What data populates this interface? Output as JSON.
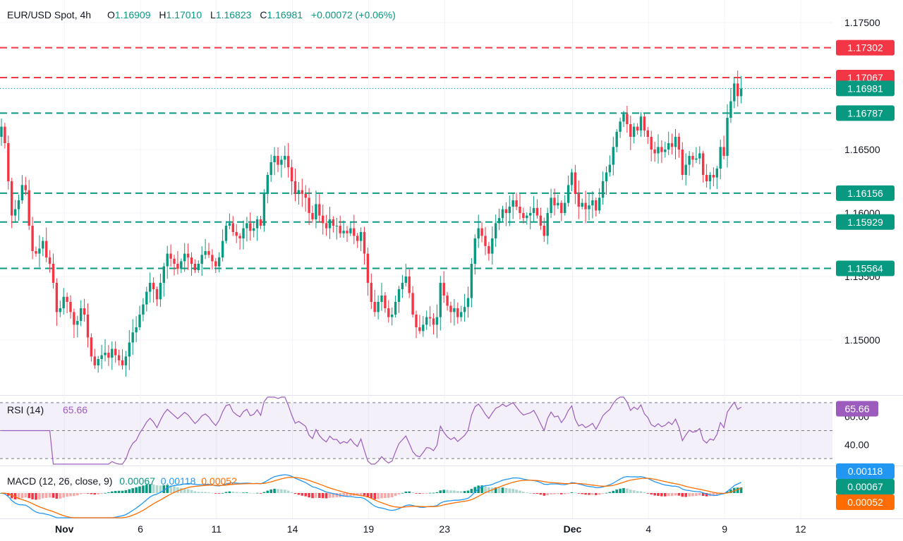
{
  "header": {
    "symbol": "EUR/USD Spot, 4h",
    "open_label": "O",
    "open": "1.16909",
    "high_label": "H",
    "high": "1.17010",
    "low_label": "L",
    "low": "1.16823",
    "close_label": "C",
    "close": "1.16981",
    "change": "+0.00072 (+0.06%)"
  },
  "colors": {
    "up": "#089981",
    "down": "#f23645",
    "rsi": "#9c5cbd",
    "macd": "#2196f3",
    "signal": "#ff6d00",
    "grid": "#f0f3fa"
  },
  "chart_data": [
    {
      "type": "candlestick",
      "title": "EUR/USD Spot, 4h",
      "ylim": [
        1.1465,
        1.1765
      ],
      "y_ticks": [
        "1.17500",
        "1.16500",
        "1.16000",
        "1.15500",
        "1.15000"
      ],
      "x_ticks": [
        {
          "label": "Nov",
          "index": 18
        },
        {
          "label": "6",
          "index": 40
        },
        {
          "label": "11",
          "index": 62
        },
        {
          "label": "14",
          "index": 84
        },
        {
          "label": "19",
          "index": 106
        },
        {
          "label": "23",
          "index": 128
        },
        {
          "label": "Dec",
          "index": 165
        },
        {
          "label": "4",
          "index": 187
        },
        {
          "label": "9",
          "index": 209
        },
        {
          "label": "12",
          "index": 231
        }
      ],
      "levels": [
        {
          "value": 1.17302,
          "label": "1.17302",
          "color": "#f23645"
        },
        {
          "value": 1.17067,
          "label": "1.17067",
          "color": "#f23645"
        },
        {
          "value": 1.16787,
          "label": "1.16787",
          "color": "#089981"
        },
        {
          "value": 1.16156,
          "label": "1.16156",
          "color": "#089981"
        },
        {
          "value": 1.15929,
          "label": "1.15929",
          "color": "#089981"
        },
        {
          "value": 1.15564,
          "label": "1.15564",
          "color": "#089981"
        }
      ],
      "last_price": {
        "value": 1.16981,
        "label": "1.16981"
      },
      "close": [
        1.1668,
        1.1655,
        1.1625,
        1.1598,
        1.1603,
        1.161,
        1.1622,
        1.1618,
        1.159,
        1.157,
        1.1568,
        1.1572,
        1.1578,
        1.1565,
        1.156,
        1.1545,
        1.1522,
        1.1525,
        1.1534,
        1.153,
        1.1522,
        1.1512,
        1.1515,
        1.1525,
        1.152,
        1.1502,
        1.1487,
        1.148,
        1.1485,
        1.1488,
        1.149,
        1.1486,
        1.1493,
        1.1488,
        1.1484,
        1.148,
        1.1487,
        1.1498,
        1.1506,
        1.151,
        1.152,
        1.1528,
        1.1538,
        1.1545,
        1.154,
        1.1532,
        1.1545,
        1.1558,
        1.1568,
        1.1564,
        1.156,
        1.1556,
        1.1562,
        1.1568,
        1.1565,
        1.156,
        1.1555,
        1.156,
        1.1567,
        1.157,
        1.1567,
        1.1562,
        1.1558,
        1.1565,
        1.1578,
        1.159,
        1.1592,
        1.1585,
        1.1582,
        1.158,
        1.1588,
        1.1592,
        1.1586,
        1.1588,
        1.1595,
        1.159,
        1.1615,
        1.163,
        1.164,
        1.1645,
        1.1638,
        1.1642,
        1.1645,
        1.1636,
        1.1625,
        1.1615,
        1.1618,
        1.1615,
        1.1612,
        1.16,
        1.1595,
        1.1607,
        1.1598,
        1.1592,
        1.1588,
        1.1595,
        1.159,
        1.159,
        1.1584,
        1.1586,
        1.1584,
        1.1588,
        1.1582,
        1.1578,
        1.1585,
        1.1568,
        1.1545,
        1.153,
        1.1522,
        1.153,
        1.1535,
        1.1525,
        1.1518,
        1.152,
        1.153,
        1.154,
        1.1545,
        1.155,
        1.1537,
        1.152,
        1.151,
        1.1507,
        1.1512,
        1.1518,
        1.1517,
        1.1512,
        1.1518,
        1.1545,
        1.1535,
        1.1527,
        1.1522,
        1.1525,
        1.1518,
        1.1522,
        1.1526,
        1.1533,
        1.156,
        1.158,
        1.1588,
        1.1582,
        1.1574,
        1.1568,
        1.158,
        1.1592,
        1.1596,
        1.1603,
        1.16,
        1.1605,
        1.161,
        1.1605,
        1.16,
        1.1596,
        1.1598,
        1.16,
        1.1604,
        1.1598,
        1.159,
        1.1582,
        1.16,
        1.1612,
        1.1606,
        1.1608,
        1.16,
        1.1608,
        1.1622,
        1.1632,
        1.1615,
        1.1605,
        1.1608,
        1.1603,
        1.1606,
        1.161,
        1.1602,
        1.1612,
        1.1625,
        1.1632,
        1.1638,
        1.1652,
        1.1664,
        1.1672,
        1.1678,
        1.167,
        1.166,
        1.1668,
        1.1665,
        1.1676,
        1.1665,
        1.166,
        1.165,
        1.1647,
        1.1652,
        1.1648,
        1.165,
        1.1655,
        1.1652,
        1.166,
        1.165,
        1.163,
        1.1638,
        1.1645,
        1.1642,
        1.1643,
        1.1647,
        1.163,
        1.1625,
        1.163,
        1.1628,
        1.1635,
        1.1652,
        1.1645,
        1.1675,
        1.1688,
        1.1702,
        1.1692,
        1.16981
      ]
    },
    {
      "type": "line",
      "name": "RSI (14)",
      "label": "RSI (14)",
      "last_value": "65.66",
      "levels": [
        70,
        50,
        30
      ],
      "ylim": [
        25,
        75
      ],
      "y_ticks": [
        "60.00",
        "40.00"
      ]
    },
    {
      "type": "bar+line",
      "name": "MACD (12, 26, close, 9)",
      "label": "MACD (12, 26, close, 9)",
      "values": {
        "histogram": "0.00067",
        "macd": "0.00118",
        "signal": "0.00052"
      }
    }
  ]
}
